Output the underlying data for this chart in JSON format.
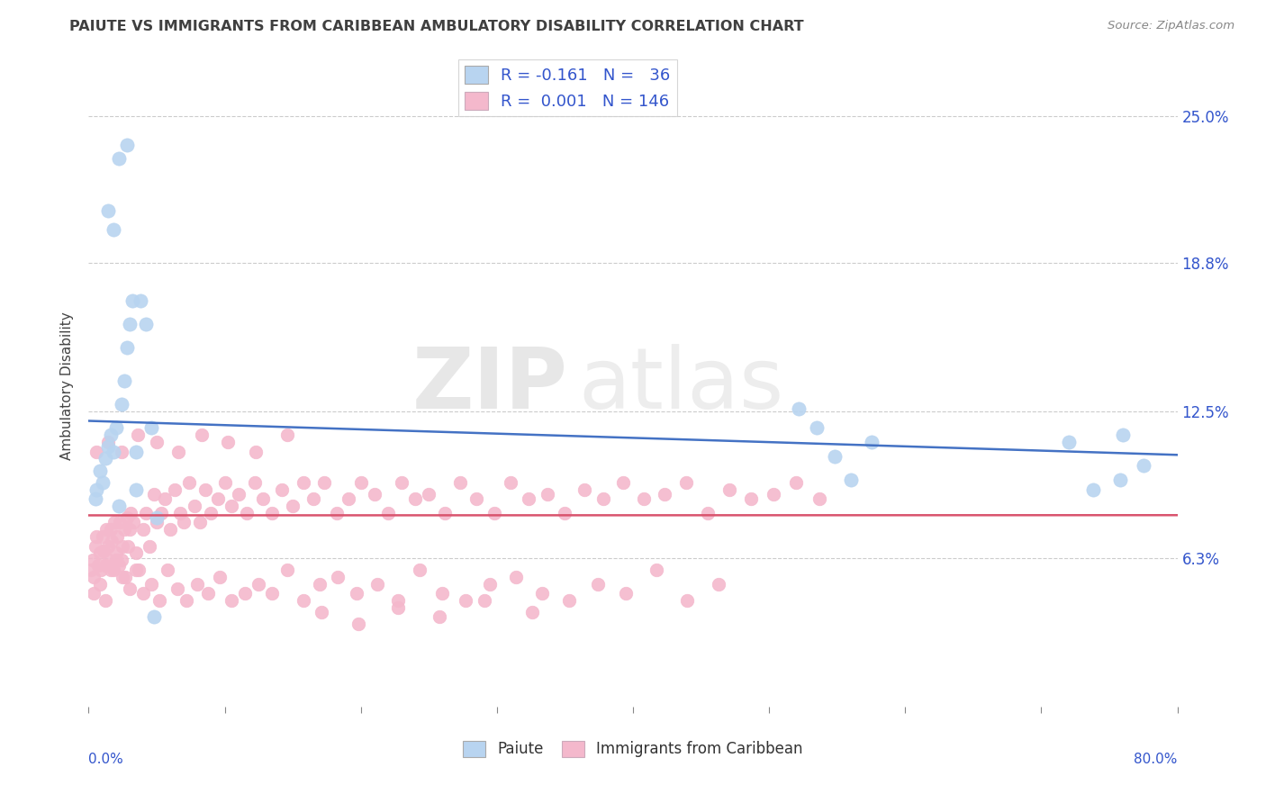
{
  "title": "PAIUTE VS IMMIGRANTS FROM CARIBBEAN AMBULATORY DISABILITY CORRELATION CHART",
  "source": "Source: ZipAtlas.com",
  "ylabel": "Ambulatory Disability",
  "ytick_labels": [
    "6.3%",
    "12.5%",
    "18.8%",
    "25.0%"
  ],
  "ytick_values": [
    0.063,
    0.125,
    0.188,
    0.25
  ],
  "xlim": [
    0.0,
    0.8
  ],
  "ylim": [
    0.0,
    0.272
  ],
  "paiute_R": -0.161,
  "paiute_N": 36,
  "caribbean_R": 0.001,
  "caribbean_N": 146,
  "blue_color": "#b8d4f0",
  "blue_line_color": "#4472c4",
  "pink_color": "#f4b8cc",
  "pink_line_color": "#d9546e",
  "legend_text_color": "#3355cc",
  "title_color": "#404040",
  "background_color": "#ffffff",
  "watermark_zip": "ZIP",
  "watermark_atlas": "atlas",
  "paiute_x": [
    0.005,
    0.006,
    0.008,
    0.01,
    0.012,
    0.014,
    0.016,
    0.018,
    0.02,
    0.022,
    0.024,
    0.026,
    0.028,
    0.03,
    0.032,
    0.035,
    0.038,
    0.042,
    0.046,
    0.05,
    0.014,
    0.018,
    0.022,
    0.028,
    0.035,
    0.522,
    0.535,
    0.548,
    0.56,
    0.575,
    0.72,
    0.738,
    0.758,
    0.775,
    0.76,
    0.048
  ],
  "paiute_y": [
    0.088,
    0.092,
    0.1,
    0.095,
    0.105,
    0.11,
    0.115,
    0.108,
    0.118,
    0.085,
    0.128,
    0.138,
    0.152,
    0.162,
    0.172,
    0.092,
    0.172,
    0.162,
    0.118,
    0.08,
    0.21,
    0.202,
    0.232,
    0.238,
    0.108,
    0.126,
    0.118,
    0.106,
    0.096,
    0.112,
    0.112,
    0.092,
    0.096,
    0.102,
    0.115,
    0.038
  ],
  "carib_x": [
    0.002,
    0.003,
    0.004,
    0.005,
    0.006,
    0.007,
    0.008,
    0.009,
    0.01,
    0.011,
    0.012,
    0.013,
    0.014,
    0.015,
    0.016,
    0.017,
    0.018,
    0.019,
    0.02,
    0.021,
    0.022,
    0.023,
    0.024,
    0.025,
    0.026,
    0.027,
    0.028,
    0.029,
    0.03,
    0.031,
    0.033,
    0.035,
    0.037,
    0.04,
    0.042,
    0.045,
    0.048,
    0.05,
    0.053,
    0.056,
    0.06,
    0.063,
    0.067,
    0.07,
    0.074,
    0.078,
    0.082,
    0.086,
    0.09,
    0.095,
    0.1,
    0.105,
    0.11,
    0.116,
    0.122,
    0.128,
    0.135,
    0.142,
    0.15,
    0.158,
    0.165,
    0.173,
    0.182,
    0.191,
    0.2,
    0.21,
    0.22,
    0.23,
    0.24,
    0.25,
    0.262,
    0.273,
    0.285,
    0.298,
    0.31,
    0.323,
    0.337,
    0.35,
    0.364,
    0.378,
    0.393,
    0.408,
    0.423,
    0.439,
    0.455,
    0.471,
    0.487,
    0.503,
    0.52,
    0.537,
    0.004,
    0.008,
    0.012,
    0.016,
    0.02,
    0.025,
    0.03,
    0.035,
    0.04,
    0.046,
    0.052,
    0.058,
    0.065,
    0.072,
    0.08,
    0.088,
    0.096,
    0.105,
    0.115,
    0.125,
    0.135,
    0.146,
    0.158,
    0.17,
    0.183,
    0.197,
    0.212,
    0.227,
    0.243,
    0.26,
    0.277,
    0.295,
    0.314,
    0.333,
    0.353,
    0.374,
    0.395,
    0.417,
    0.44,
    0.463,
    0.006,
    0.014,
    0.024,
    0.036,
    0.05,
    0.066,
    0.083,
    0.102,
    0.123,
    0.146,
    0.171,
    0.198,
    0.227,
    0.258,
    0.291,
    0.326
  ],
  "carib_y": [
    0.058,
    0.062,
    0.055,
    0.068,
    0.072,
    0.06,
    0.065,
    0.058,
    0.072,
    0.066,
    0.06,
    0.075,
    0.068,
    0.062,
    0.075,
    0.07,
    0.058,
    0.078,
    0.065,
    0.072,
    0.06,
    0.078,
    0.062,
    0.068,
    0.075,
    0.055,
    0.08,
    0.068,
    0.075,
    0.082,
    0.078,
    0.065,
    0.058,
    0.075,
    0.082,
    0.068,
    0.09,
    0.078,
    0.082,
    0.088,
    0.075,
    0.092,
    0.082,
    0.078,
    0.095,
    0.085,
    0.078,
    0.092,
    0.082,
    0.088,
    0.095,
    0.085,
    0.09,
    0.082,
    0.095,
    0.088,
    0.082,
    0.092,
    0.085,
    0.095,
    0.088,
    0.095,
    0.082,
    0.088,
    0.095,
    0.09,
    0.082,
    0.095,
    0.088,
    0.09,
    0.082,
    0.095,
    0.088,
    0.082,
    0.095,
    0.088,
    0.09,
    0.082,
    0.092,
    0.088,
    0.095,
    0.088,
    0.09,
    0.095,
    0.082,
    0.092,
    0.088,
    0.09,
    0.095,
    0.088,
    0.048,
    0.052,
    0.045,
    0.058,
    0.062,
    0.055,
    0.05,
    0.058,
    0.048,
    0.052,
    0.045,
    0.058,
    0.05,
    0.045,
    0.052,
    0.048,
    0.055,
    0.045,
    0.048,
    0.052,
    0.048,
    0.058,
    0.045,
    0.052,
    0.055,
    0.048,
    0.052,
    0.045,
    0.058,
    0.048,
    0.045,
    0.052,
    0.055,
    0.048,
    0.045,
    0.052,
    0.048,
    0.058,
    0.045,
    0.052,
    0.108,
    0.112,
    0.108,
    0.115,
    0.112,
    0.108,
    0.115,
    0.112,
    0.108,
    0.115,
    0.04,
    0.035,
    0.042,
    0.038,
    0.045,
    0.04
  ]
}
